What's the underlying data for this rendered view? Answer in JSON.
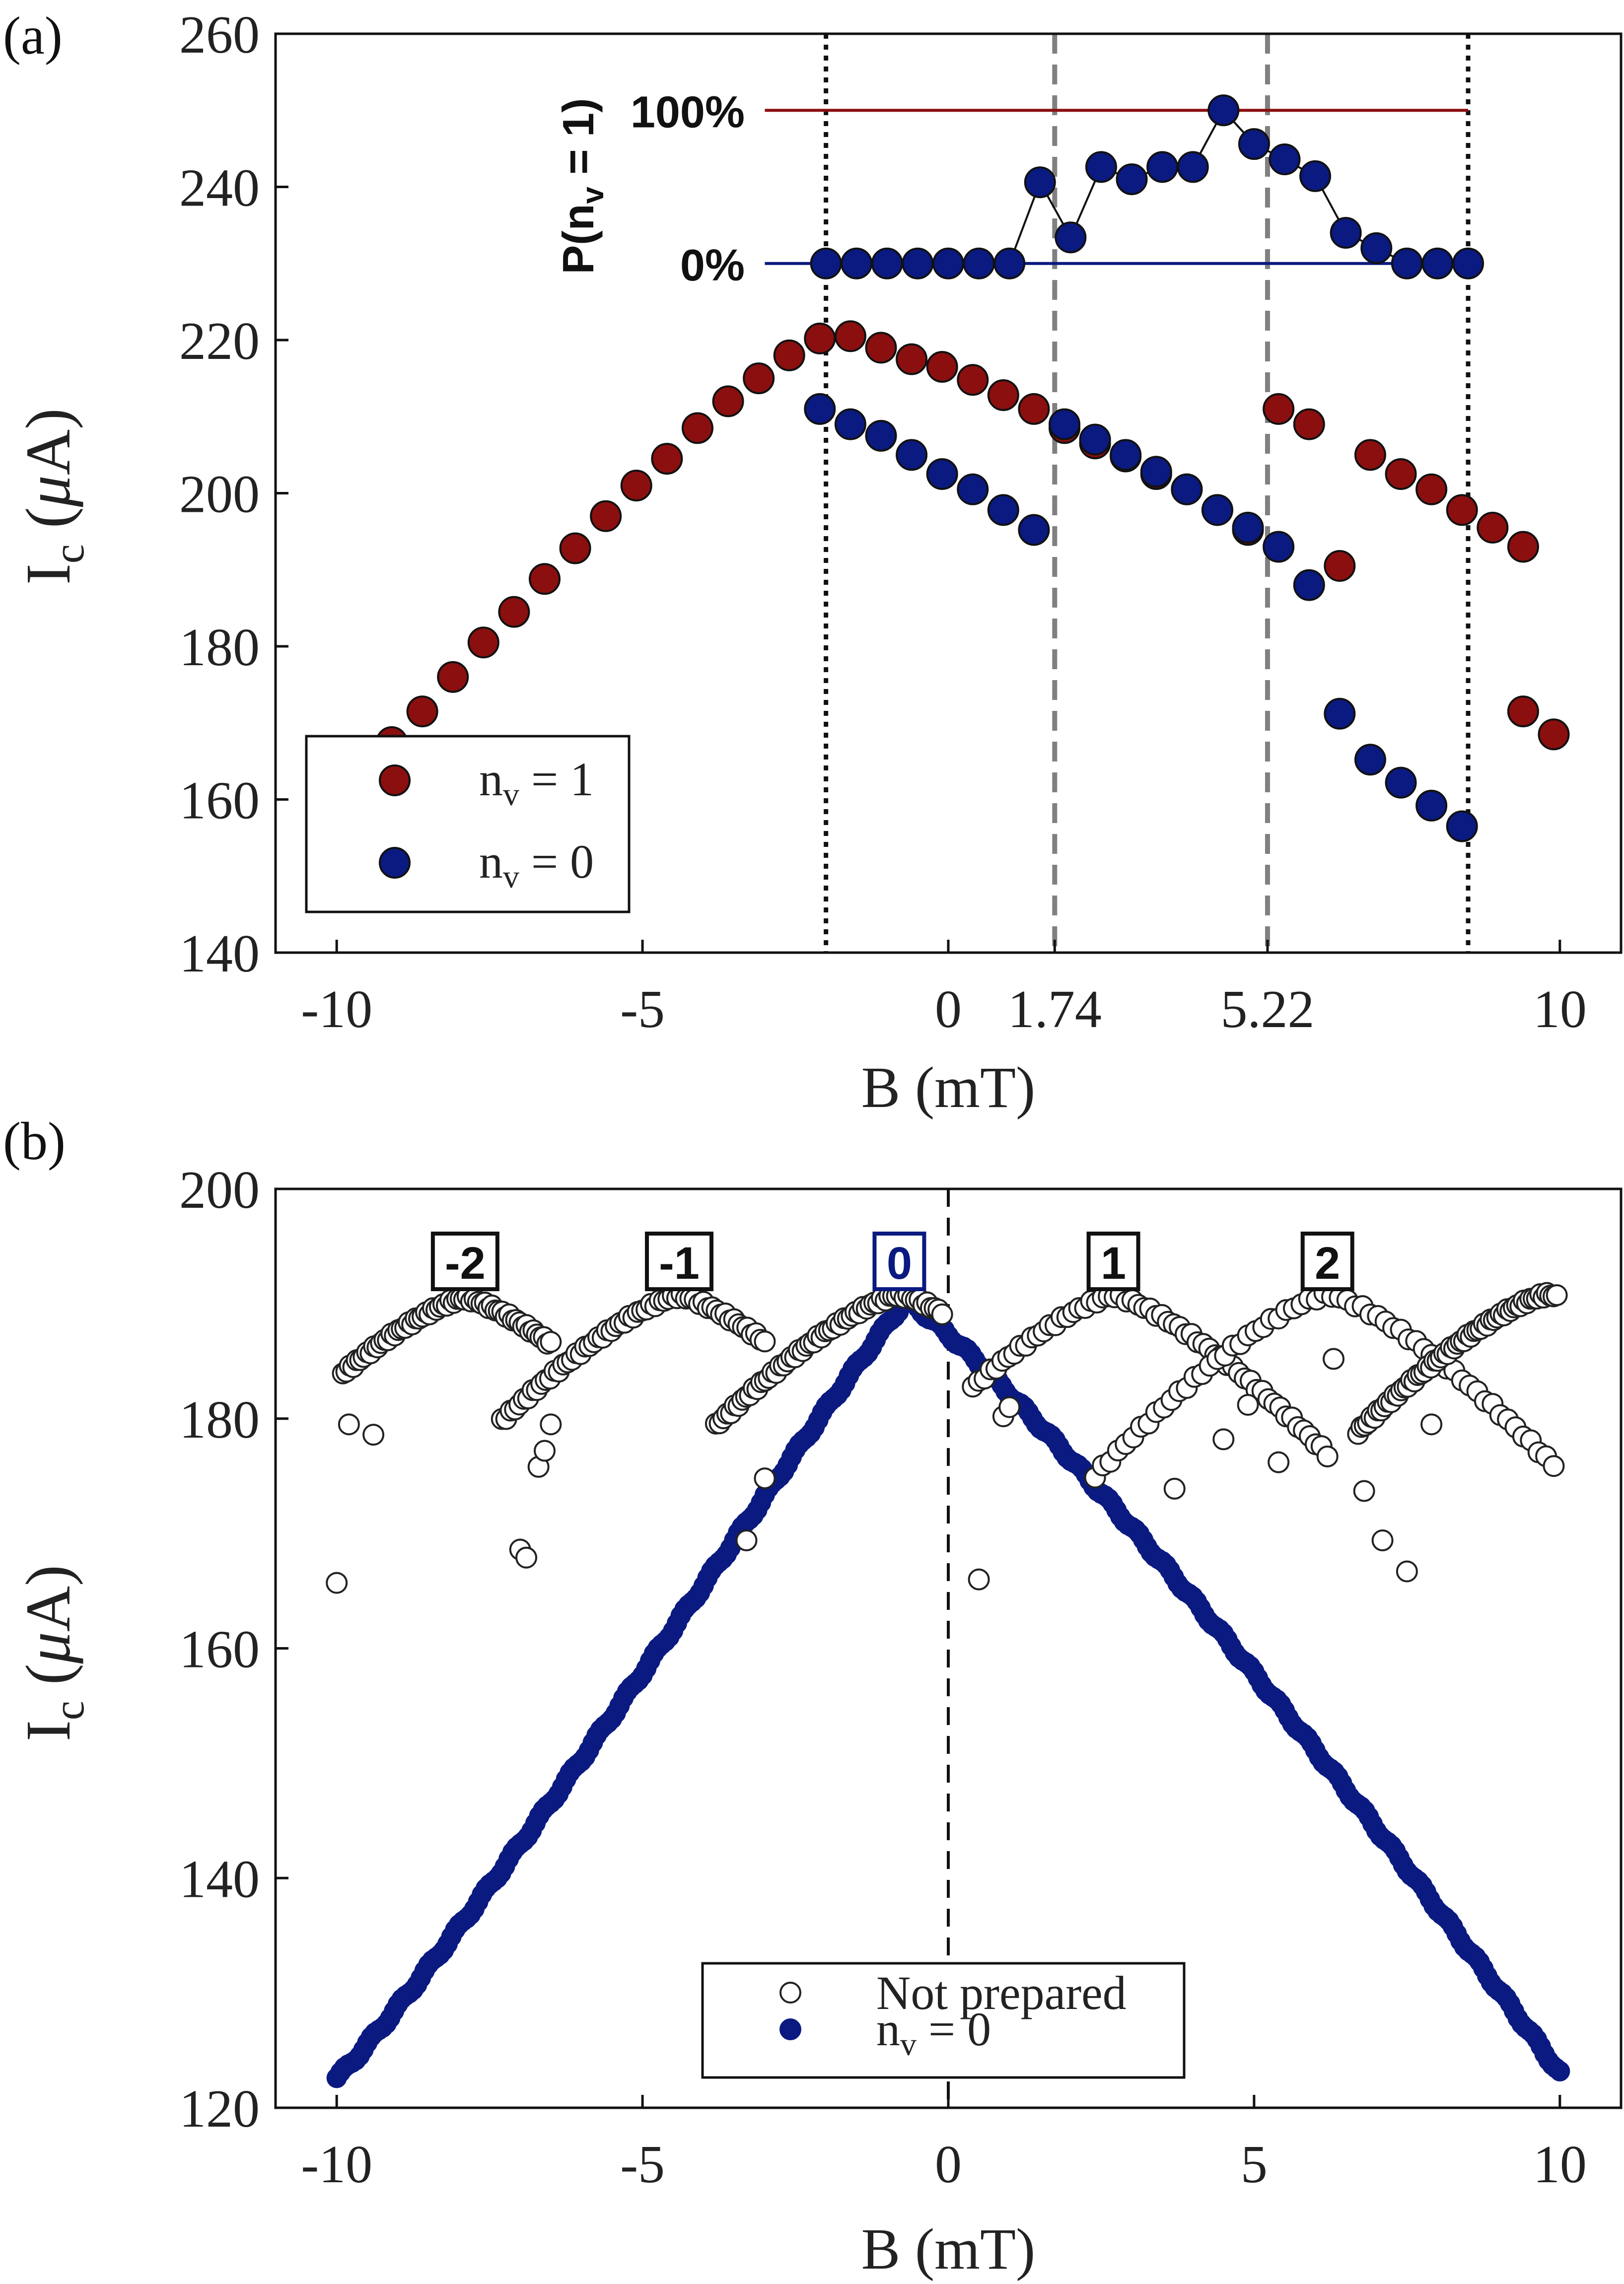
{
  "chart_data": [
    {
      "type": "scatter",
      "panel_label": "(a)",
      "xlabel_main": "B",
      "xlabel_unit": "(mT)",
      "ylabel_main": "I",
      "ylabel_sub": "c",
      "ylabel_unit_open": "(",
      "ylabel_unit_mu": "μ",
      "ylabel_unit_close": "A)",
      "xlim": [
        -11,
        11
      ],
      "ylim": [
        140,
        260
      ],
      "x_ticks": [
        -10,
        -5,
        0,
        1.74,
        5.22,
        10
      ],
      "x_tick_labels": [
        "-10",
        "-5",
        "0",
        "1.74",
        "5.22",
        "10"
      ],
      "y_ticks": [
        140,
        160,
        180,
        200,
        220,
        240,
        260
      ],
      "y_tick_labels": [
        "140",
        "160",
        "180",
        "200",
        "220",
        "240",
        "260"
      ],
      "vlines_dotted": [
        -2.0,
        8.5
      ],
      "vlines_dashed": [
        1.74,
        5.22
      ],
      "colors": {
        "nv1": "#8b0f0f",
        "nv0": "#0a1a80",
        "dashed": "#808080"
      },
      "legend": {
        "placement": "bottom-left",
        "entries": [
          {
            "label_main": "n",
            "label_sub": "v",
            "label_rest": " = 1",
            "color": "#8b0f0f"
          },
          {
            "label_main": "n",
            "label_sub": "v",
            "label_rest": " = 0",
            "color": "#0a1a80"
          }
        ]
      },
      "series": [
        {
          "name_main": "n",
          "name_sub": "v",
          "name_rest": " = 1",
          "color": "#8b0f0f",
          "points": [
            [
              -9.1,
              167.5
            ],
            [
              -8.6,
              171.5
            ],
            [
              -8.1,
              176
            ],
            [
              -7.6,
              180.5
            ],
            [
              -7.1,
              184.5
            ],
            [
              -6.6,
              188.8
            ],
            [
              -6.1,
              192.8
            ],
            [
              -5.6,
              197
            ],
            [
              -5.1,
              201
            ],
            [
              -4.6,
              204.5
            ],
            [
              -4.1,
              208.5
            ],
            [
              -3.6,
              212
            ],
            [
              -3.1,
              215
            ],
            [
              -2.6,
              218
            ],
            [
              -2.1,
              220.2
            ],
            [
              -1.6,
              220.5
            ],
            [
              -1.1,
              219
            ],
            [
              -0.6,
              217.5
            ],
            [
              -0.1,
              216.5
            ],
            [
              0.4,
              214.8
            ],
            [
              0.9,
              212.8
            ],
            [
              1.4,
              211
            ],
            [
              1.9,
              208.5
            ],
            [
              2.4,
              206.5
            ],
            [
              2.9,
              204.8
            ],
            [
              3.4,
              202.5
            ],
            [
              3.9,
              200.5
            ],
            [
              4.4,
              197.8
            ],
            [
              4.9,
              195.2
            ],
            [
              5.4,
              211
            ],
            [
              5.9,
              209
            ],
            [
              6.4,
              190.5
            ],
            [
              6.9,
              205
            ],
            [
              7.4,
              202.5
            ],
            [
              7.9,
              200.5
            ],
            [
              8.4,
              197.8
            ],
            [
              8.9,
              195.5
            ],
            [
              9.4,
              193
            ],
            [
              9.4,
              171.5
            ],
            [
              9.9,
              168.5
            ]
          ]
        },
        {
          "name_main": "n",
          "name_sub": "v",
          "name_rest": " = 0",
          "color": "#0a1a80",
          "points": [
            [
              -2.1,
              211
            ],
            [
              -1.6,
              209
            ],
            [
              -1.1,
              207.5
            ],
            [
              -0.6,
              205
            ],
            [
              -0.1,
              202.5
            ],
            [
              0.4,
              200.5
            ],
            [
              0.9,
              197.8
            ],
            [
              1.4,
              195.2
            ],
            [
              1.9,
              209
            ],
            [
              2.4,
              207
            ],
            [
              2.9,
              205
            ],
            [
              3.4,
              202.8
            ],
            [
              3.9,
              200.5
            ],
            [
              4.4,
              197.8
            ],
            [
              4.9,
              195.5
            ],
            [
              5.4,
              193
            ],
            [
              5.9,
              188
            ],
            [
              6.4,
              171.2
            ],
            [
              6.9,
              165.2
            ],
            [
              7.4,
              162.2
            ],
            [
              7.9,
              159.2
            ],
            [
              8.4,
              156.5
            ]
          ]
        }
      ],
      "inset": {
        "ylabel": "P(n",
        "ylabel_sub": "v",
        "ylabel_rest": " = 1)",
        "label_100": "100%",
        "label_0": "0%",
        "y_100": 250,
        "y_0": 230,
        "line_x": [
          -3.0,
          8.5
        ],
        "color_100": "#8b0f0f",
        "color_0": "#0a1a80",
        "points_x": [
          -2.0,
          -1.5,
          -1.0,
          -0.5,
          0.0,
          0.5,
          1.0,
          1.5,
          2.0,
          2.5,
          3.0,
          3.5,
          4.0,
          4.5,
          5.0,
          5.5,
          6.0,
          6.5,
          7.0,
          7.5,
          8.0,
          8.5
        ],
        "probability_pct": [
          0,
          0,
          0,
          0,
          0,
          0,
          0,
          53,
          17,
          63,
          55,
          63,
          63,
          100,
          78,
          68,
          57,
          20,
          10,
          0,
          0,
          0
        ]
      }
    },
    {
      "type": "scatter",
      "panel_label": "(b)",
      "xlabel_main": "B",
      "xlabel_unit": "(mT)",
      "ylabel_main": "I",
      "ylabel_sub": "c",
      "ylabel_unit_open": "(",
      "ylabel_unit_mu": "μ",
      "ylabel_unit_close": "A)",
      "xlim": [
        -11,
        11
      ],
      "ylim": [
        120,
        200
      ],
      "x_ticks": [
        -10,
        -5,
        0,
        5,
        10
      ],
      "x_tick_labels": [
        "-10",
        "-5",
        "0",
        "5",
        "10"
      ],
      "y_ticks": [
        120,
        140,
        160,
        180,
        200
      ],
      "y_tick_labels": [
        "120",
        "140",
        "160",
        "180",
        "200"
      ],
      "vline_dashed": 0,
      "colors": {
        "filled": "#0a1a80",
        "open_stroke": "#222222"
      },
      "branch_labels": [
        {
          "text": "-2",
          "x": -7.9,
          "color": "#111111"
        },
        {
          "text": "-1",
          "x": -4.4,
          "color": "#111111"
        },
        {
          "text": "0",
          "x": -0.8,
          "color": "#0a1a80"
        },
        {
          "text": "1",
          "x": 2.7,
          "color": "#111111"
        },
        {
          "text": "2",
          "x": 6.2,
          "color": "#111111"
        }
      ],
      "legend": {
        "placement": "bottom-center",
        "entries": [
          {
            "label": "Not prepared",
            "marker": "open"
          },
          {
            "label_main": "n",
            "label_sub": "v",
            "label_rest": " = 0",
            "marker": "filled"
          }
        ]
      },
      "series": [
        {
          "name": "Not prepared",
          "marker": "open",
          "branches": [
            {
              "peak_x": -7.9,
              "peak_y": 190.5,
              "x_range": [
                -9.9,
                -6.5
              ]
            },
            {
              "peak_x": -4.4,
              "peak_y": 190.7,
              "x_range": [
                -7.3,
                -3.0
              ]
            },
            {
              "peak_x": -0.8,
              "peak_y": 190.8,
              "x_range": [
                -3.8,
                -0.1
              ]
            },
            {
              "peak_x": 2.7,
              "peak_y": 190.7,
              "x_range": [
                0.4,
                6.2
              ]
            },
            {
              "peak_x": 6.2,
              "peak_y": 190.8,
              "x_range": [
                2.4,
                9.9
              ]
            },
            {
              "peak_x": 9.8,
              "peak_y": 190.8,
              "x_range": [
                6.7,
                9.95
              ]
            }
          ],
          "outliers": [
            [
              -10.0,
              165.7
            ],
            [
              -9.8,
              179.5
            ],
            [
              -9.4,
              178.6
            ],
            [
              -7.0,
              168.6
            ],
            [
              -6.9,
              167.9
            ],
            [
              -6.7,
              175.8
            ],
            [
              -6.6,
              177.2
            ],
            [
              -6.5,
              179.5
            ],
            [
              -3.3,
              169.4
            ],
            [
              -3.0,
              174.8
            ],
            [
              0.5,
              166.0
            ],
            [
              0.9,
              180.2
            ],
            [
              1.0,
              181.0
            ],
            [
              3.7,
              173.9
            ],
            [
              4.5,
              178.2
            ],
            [
              4.9,
              181.2
            ],
            [
              5.4,
              176.2
            ],
            [
              6.3,
              185.2
            ],
            [
              6.8,
              173.7
            ],
            [
              7.1,
              169.4
            ],
            [
              7.5,
              166.7
            ],
            [
              7.9,
              179.5
            ]
          ]
        },
        {
          "name_main": "n",
          "name_sub": "v",
          "name_rest": " = 0",
          "marker": "filled",
          "peak_x": -0.8,
          "peak_y": 190.8,
          "left_end": [
            -10.0,
            122.6
          ],
          "right_end": [
            10.0,
            123.0
          ],
          "x_range": [
            -10.0,
            10.0
          ]
        }
      ]
    }
  ]
}
